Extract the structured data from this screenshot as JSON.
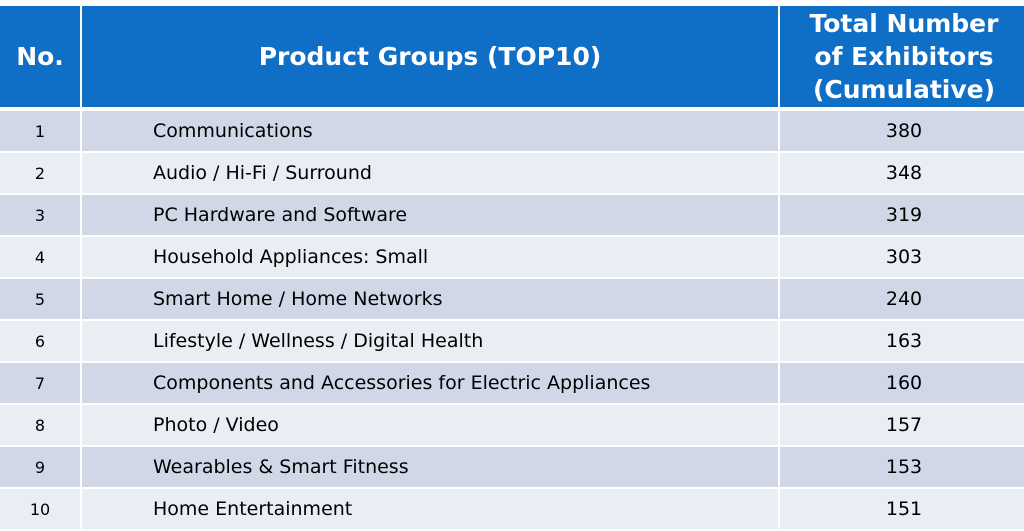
{
  "header": {
    "no": "No.",
    "group": "Product Groups (TOP10)",
    "total_line1": "Total Number",
    "total_line2": "of Exhibitors",
    "total_line3": "(Cumulative)"
  },
  "rows": [
    {
      "no": "1",
      "group": "Communications",
      "total": "380"
    },
    {
      "no": "2",
      "group": "Audio / Hi-Fi / Surround",
      "total": "348"
    },
    {
      "no": "3",
      "group": "PC Hardware and Software",
      "total": "319"
    },
    {
      "no": "4",
      "group": "Household Appliances: Small",
      "total": "303"
    },
    {
      "no": "5",
      "group": "Smart Home / Home Networks",
      "total": "240"
    },
    {
      "no": "6",
      "group": "Lifestyle / Wellness / Digital Health",
      "total": "163"
    },
    {
      "no": "7",
      "group": "Components and Accessories for Electric Appliances",
      "total": "160"
    },
    {
      "no": "8",
      "group": "Photo / Video",
      "total": "157"
    },
    {
      "no": "9",
      "group": "Wearables & Smart Fitness",
      "total": "153"
    },
    {
      "no": "10",
      "group": "Home Entertainment",
      "total": "151"
    }
  ],
  "colors": {
    "header_bg": "#0f6fc6",
    "row_odd": "#d0d8e8",
    "row_even": "#e9edf4"
  }
}
